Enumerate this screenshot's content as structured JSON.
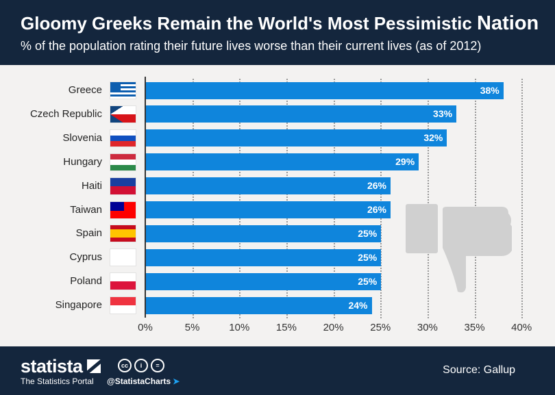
{
  "header": {
    "title_main": "Gloomy Greeks Remain the World's Most Pessimistic",
    "title_last": "Nation",
    "subtitle": "% of the population rating their future lives worse than their current lives (as of 2012)"
  },
  "footer": {
    "logo": "statista",
    "portal": "The Statistics Portal",
    "handle": "@StatistaCharts",
    "source": "Source: Gallup",
    "cc": [
      "cc",
      "i",
      "="
    ]
  },
  "colors": {
    "bar": "#0f85dc",
    "header": "#14263d",
    "background": "#f3f2f1"
  },
  "chart_data": {
    "type": "bar",
    "orientation": "horizontal",
    "title": "Gloomy Greeks Remain the World's Most Pessimistic Nation",
    "categories": [
      "Greece",
      "Czech Republic",
      "Slovenia",
      "Hungary",
      "Haiti",
      "Taiwan",
      "Spain",
      "Cyprus",
      "Poland",
      "Singapore"
    ],
    "values": [
      38,
      33,
      32,
      29,
      26,
      26,
      25,
      25,
      25,
      24
    ],
    "value_labels": [
      "38%",
      "33%",
      "32%",
      "29%",
      "26%",
      "26%",
      "25%",
      "25%",
      "25%",
      "24%"
    ],
    "flags": [
      "greece-flag-icon",
      "czech-flag-icon",
      "slovenia-flag-icon",
      "hungary-flag-icon",
      "haiti-flag-icon",
      "taiwan-flag-icon",
      "spain-flag-icon",
      "cyprus-flag-icon",
      "poland-flag-icon",
      "singapore-flag-icon"
    ],
    "xlim": [
      0,
      40
    ],
    "ticks": [
      "0%",
      "5%",
      "10%",
      "15%",
      "20%",
      "25%",
      "30%",
      "35%",
      "40%"
    ],
    "tick_values": [
      0,
      5,
      10,
      15,
      20,
      25,
      30,
      35,
      40
    ],
    "grid": true
  }
}
